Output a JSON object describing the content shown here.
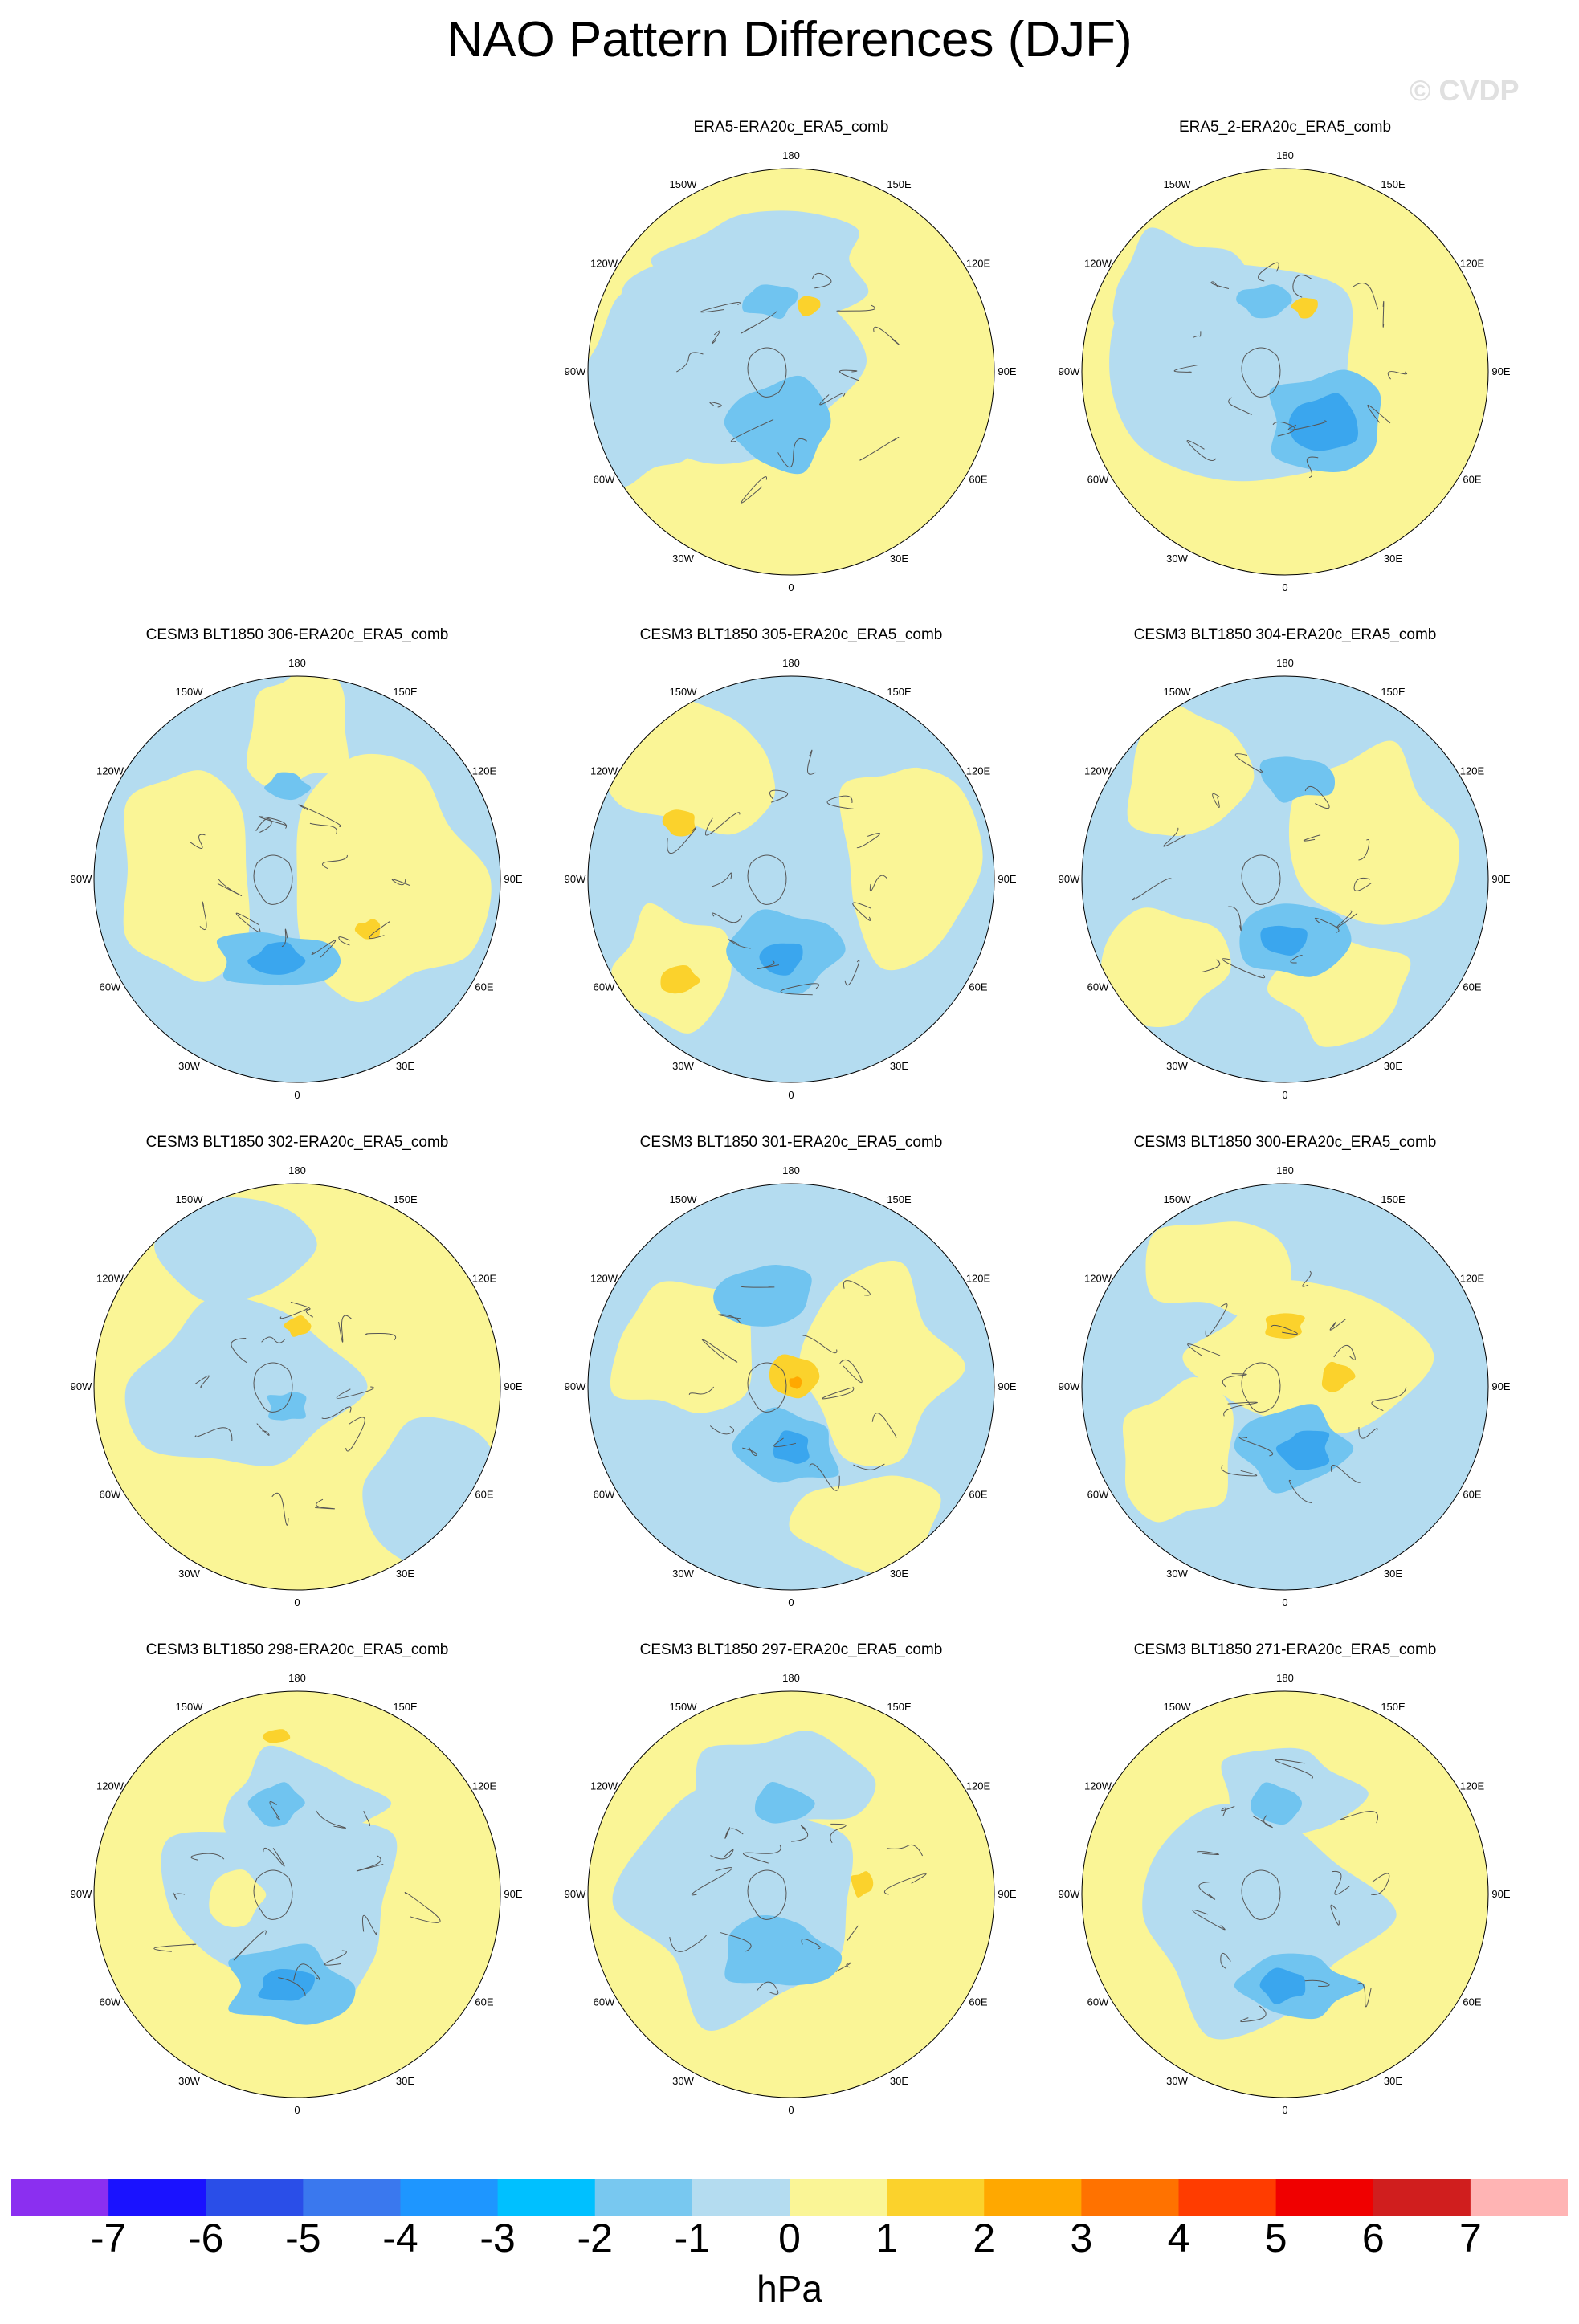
{
  "title": "NAO Pattern Differences (DJF)",
  "watermark": "© CVDP",
  "colors": {
    "neg1": "#b4dcf0",
    "neg2": "#70c4f0",
    "neg3": "#3aa6ee",
    "neg4": "#1e90ff",
    "pos1": "#faf596",
    "pos2": "#fbd22c",
    "pos3": "#ffa800",
    "coast": "#555555"
  },
  "longitude_labels": [
    "180",
    "150E",
    "120E",
    "90E",
    "60E",
    "30E",
    "0",
    "30W",
    "60W",
    "90W",
    "120W",
    "150W"
  ],
  "panels": [
    {
      "title": "ERA5-ERA20c_ERA5_comb"
    },
    {
      "title": "ERA5_2-ERA20c_ERA5_comb"
    },
    {
      "title": "CESM3 BLT1850 306-ERA20c_ERA5_comb"
    },
    {
      "title": "CESM3 BLT1850 305-ERA20c_ERA5_comb"
    },
    {
      "title": "CESM3 BLT1850 304-ERA20c_ERA5_comb"
    },
    {
      "title": "CESM3 BLT1850 302-ERA20c_ERA5_comb"
    },
    {
      "title": "CESM3 BLT1850 301-ERA20c_ERA5_comb"
    },
    {
      "title": "CESM3 BLT1850 300-ERA20c_ERA5_comb"
    },
    {
      "title": "CESM3 BLT1850 298-ERA20c_ERA5_comb"
    },
    {
      "title": "CESM3 BLT1850 297-ERA20c_ERA5_comb"
    },
    {
      "title": "CESM3 BLT1850 271-ERA20c_ERA5_comb"
    }
  ],
  "colorbar": {
    "colors": [
      "#8b2ff0",
      "#1a12ff",
      "#2a4ee8",
      "#3a78ee",
      "#1e96ff",
      "#00c0ff",
      "#78c8f0",
      "#b4dcf0",
      "#faf596",
      "#fbd22c",
      "#ffa800",
      "#ff7200",
      "#ff3c00",
      "#f00000",
      "#d01e1e",
      "#ffb4b4"
    ],
    "labels": [
      "-7",
      "-6",
      "-5",
      "-4",
      "-3",
      "-2",
      "-1",
      "0",
      "1",
      "2",
      "3",
      "4",
      "5",
      "6",
      "7"
    ],
    "units": "hPa"
  }
}
